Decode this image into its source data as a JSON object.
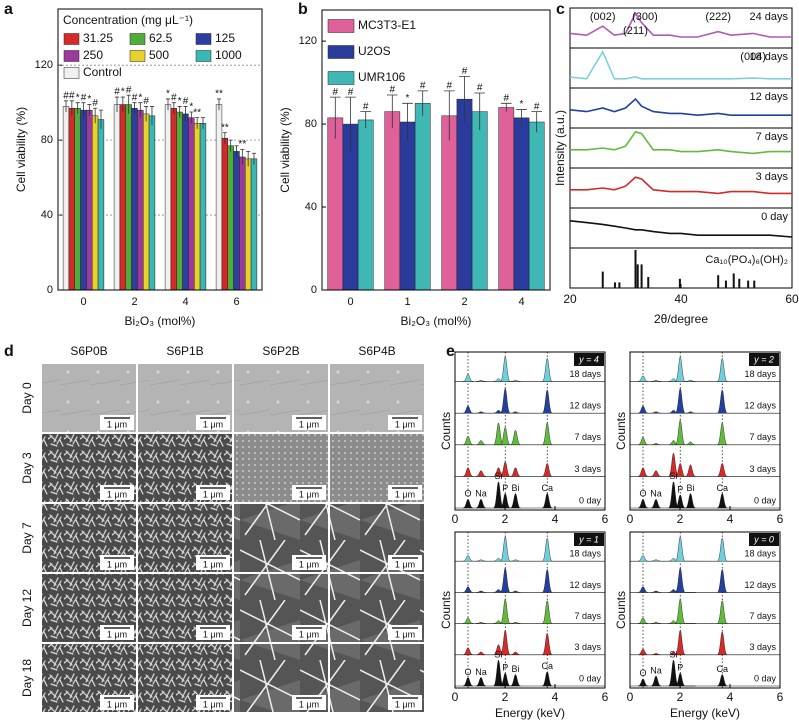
{
  "chart_data": [
    {
      "type": "bar",
      "panel": "a",
      "ylabel": "Cell viability (%)",
      "xlabel": "Bi₂O₃ (mol%)",
      "legend_title": "Concentration (mg μL⁻¹)",
      "legend": "top-left",
      "grid": true,
      "categories": [
        "0",
        "2",
        "4",
        "6"
      ],
      "ylim": [
        0,
        150
      ],
      "yticks": [
        0,
        40,
        80,
        120
      ],
      "series": [
        {
          "name": "Control",
          "color": "#f0f0f0",
          "values": [
            98,
            99,
            99,
            99
          ],
          "errors": [
            3,
            4,
            3,
            3
          ],
          "annotations": [
            "#",
            "#",
            "*",
            "**"
          ]
        },
        {
          "name": "31.25",
          "color": "#d42a2a",
          "values": [
            97,
            99,
            97,
            81
          ],
          "errors": [
            4,
            4,
            3,
            3
          ],
          "annotations": [
            "#",
            "*",
            "#",
            "**"
          ]
        },
        {
          "name": "62.5",
          "color": "#4fae3a",
          "values": [
            97,
            99,
            95,
            77
          ],
          "errors": [
            3,
            5,
            3,
            3
          ],
          "annotations": [
            "*",
            "#",
            "*",
            null
          ]
        },
        {
          "name": "125",
          "color": "#2b3f9e",
          "values": [
            96,
            97,
            94,
            74
          ],
          "errors": [
            4,
            3,
            4,
            3
          ],
          "annotations": [
            "#",
            "#",
            "#",
            null
          ]
        },
        {
          "name": "250",
          "color": "#9a3a9e",
          "values": [
            96,
            96,
            92,
            71
          ],
          "errors": [
            3,
            4,
            3,
            4
          ],
          "annotations": [
            "*",
            "*",
            "*",
            "**"
          ]
        },
        {
          "name": "500",
          "color": "#e8d22a",
          "values": [
            93,
            94,
            89,
            70
          ],
          "errors": [
            4,
            4,
            3,
            4
          ],
          "annotations": [
            "#",
            "#",
            "**",
            null
          ]
        },
        {
          "name": "1000",
          "color": "#3ab8b4",
          "values": [
            91,
            93,
            89,
            70
          ],
          "errors": [
            5,
            5,
            3,
            3
          ],
          "annotations": [
            null,
            null,
            null,
            null
          ]
        }
      ]
    },
    {
      "type": "bar",
      "panel": "b",
      "ylabel": "Cell viability (%)",
      "xlabel": "Bi₂O₃ (mol%)",
      "legend": "top-left",
      "grid": false,
      "categories": [
        "0",
        "1",
        "2",
        "4"
      ],
      "ylim": [
        0,
        135
      ],
      "yticks": [
        0,
        40,
        80,
        120
      ],
      "series": [
        {
          "name": "MC3T3-E1",
          "color": "#e0609a",
          "values": [
            83,
            86,
            84,
            88
          ],
          "errors": [
            10,
            8,
            12,
            2
          ],
          "annotations": [
            "#",
            "#",
            "#",
            "#"
          ]
        },
        {
          "name": "U2OS",
          "color": "#2a3b9c",
          "values": [
            80,
            81,
            92,
            83
          ],
          "errors": [
            13,
            9,
            11,
            4
          ],
          "annotations": [
            "#",
            "*",
            "#",
            "*"
          ]
        },
        {
          "name": "UMR106",
          "color": "#3fb7b5",
          "values": [
            82,
            90,
            86,
            81
          ],
          "errors": [
            4,
            6,
            9,
            5
          ],
          "annotations": [
            "#",
            "#",
            "#",
            "#"
          ]
        }
      ]
    },
    {
      "type": "line",
      "panel": "c",
      "ylabel": "Intensity (a.u.)",
      "xlabel": "2θ/degree",
      "xlim": [
        20,
        60
      ],
      "xticks": [
        20,
        40,
        60
      ],
      "ylim": [
        0,
        1
      ],
      "x": [
        20,
        23,
        25.9,
        28,
        30,
        31.8,
        32.9,
        35,
        38,
        40,
        43,
        46.7,
        49,
        53,
        56,
        60
      ],
      "series": [
        {
          "name": "24 days",
          "color": "#b05ab8",
          "values": [
            0.35,
            0.3,
            0.55,
            0.3,
            0.35,
            0.9,
            0.65,
            0.3,
            0.3,
            0.25,
            0.25,
            0.4,
            0.3,
            0.35,
            0.25,
            0.25
          ],
          "peaks": [
            {
              "label": "(002)",
              "x": 25.9
            },
            {
              "label": "(211)",
              "x": 31.8
            },
            {
              "label": "(300)",
              "x": 33.5
            },
            {
              "label": "(222)",
              "x": 46.7
            }
          ]
        },
        {
          "name": "18 days",
          "color": "#7fd0dc",
          "values": [
            0.25,
            0.2,
            0.95,
            0.2,
            0.2,
            0.25,
            0.2,
            0.2,
            0.2,
            0.2,
            0.2,
            0.2,
            0.2,
            0.22,
            0.2,
            0.2
          ],
          "peaks": [
            {
              "label": "(004)",
              "x": 53
            }
          ]
        },
        {
          "name": "12 days",
          "color": "#23409e",
          "values": [
            0.45,
            0.4,
            0.5,
            0.4,
            0.5,
            0.75,
            0.55,
            0.4,
            0.35,
            0.35,
            0.3,
            0.35,
            0.3,
            0.3,
            0.3,
            0.3
          ],
          "peaks": []
        },
        {
          "name": "7 days",
          "color": "#62bb3c",
          "values": [
            0.45,
            0.45,
            0.5,
            0.45,
            0.55,
            0.95,
            0.9,
            0.45,
            0.45,
            0.4,
            0.4,
            0.45,
            0.4,
            0.35,
            0.4,
            0.4
          ],
          "peaks": []
        },
        {
          "name": "3 days",
          "color": "#d42a2a",
          "values": [
            0.45,
            0.45,
            0.5,
            0.45,
            0.55,
            0.8,
            0.75,
            0.45,
            0.4,
            0.4,
            0.4,
            0.35,
            0.4,
            0.4,
            0.35,
            0.35
          ],
          "peaks": []
        },
        {
          "name": "0 day",
          "color": "#111111",
          "values": [
            0.7,
            0.65,
            0.6,
            0.55,
            0.5,
            0.45,
            0.45,
            0.4,
            0.35,
            0.35,
            0.3,
            0.3,
            0.3,
            0.3,
            0.3,
            0.25
          ],
          "peaks": []
        }
      ],
      "reference": {
        "name": "Ca₁₀(PO₄)₆(OH)₂",
        "color": "#111111",
        "x": [
          25.9,
          28.1,
          28.9,
          31.8,
          32.2,
          32.9,
          34.1,
          39.8,
          46.7,
          48.1,
          49.5,
          50.5,
          52.1,
          53.2
        ],
        "values": [
          0.4,
          0.1,
          0.1,
          1,
          0.6,
          0.6,
          0.25,
          0.2,
          0.3,
          0.15,
          0.35,
          0.2,
          0.15,
          0.15
        ]
      }
    },
    {
      "type": "image-grid",
      "panel": "d",
      "columns": [
        "S6P0B",
        "S6P1B",
        "S6P2B",
        "S6P4B"
      ],
      "rows": [
        "Day 0",
        "Day 3",
        "Day 7",
        "Day 12",
        "Day 18"
      ],
      "scale_bar": "1 μm"
    },
    {
      "type": "spectrum",
      "panel": "e",
      "ylabel": "Counts",
      "xlabel": "Energy (keV)",
      "xlim": [
        0,
        6
      ],
      "xticks": [
        0,
        2,
        4,
        6
      ],
      "ylim": [
        0,
        1
      ],
      "x": [
        0.52,
        1.04,
        1.74,
        2.01,
        2.42,
        3.69
      ],
      "guides": [
        0.52,
        2.01,
        3.69
      ],
      "series": [
        {
          "name": "18 days",
          "color": "#6fd0dc"
        },
        {
          "name": "12 days",
          "color": "#23409e"
        },
        {
          "name": "7 days",
          "color": "#62bb3c"
        },
        {
          "name": "3 days",
          "color": "#d42a2a"
        },
        {
          "name": "0 day",
          "color": "#111111"
        }
      ],
      "subplots": [
        {
          "tag": "y = 4",
          "labels": [
            "O",
            "Na",
            "Si",
            "P",
            "Bi",
            "Ca"
          ],
          "values": [
            [
              0.25,
              0.05,
              0.1,
              0.85,
              0.05,
              0.8
            ],
            [
              0.25,
              0.05,
              0.1,
              0.85,
              0.05,
              0.8
            ],
            [
              0.3,
              0.15,
              0.75,
              0.6,
              0.5,
              0.75
            ],
            [
              0.3,
              0.2,
              0.3,
              0.5,
              0.3,
              0.45
            ],
            [
              0.3,
              0.3,
              0.9,
              0.5,
              0.5,
              0.5
            ]
          ]
        },
        {
          "tag": "y = 2",
          "labels": [
            "O",
            "Na",
            "Si",
            "P",
            "Bi",
            "Ca"
          ],
          "values": [
            [
              0.2,
              0.05,
              0.1,
              0.85,
              0.05,
              0.8
            ],
            [
              0.25,
              0.05,
              0.1,
              0.85,
              0.05,
              0.8
            ],
            [
              0.25,
              0.05,
              0.15,
              0.85,
              0.1,
              0.75
            ],
            [
              0.3,
              0.2,
              0.8,
              0.45,
              0.4,
              0.45
            ],
            [
              0.3,
              0.3,
              0.9,
              0.45,
              0.5,
              0.5
            ]
          ]
        },
        {
          "tag": "y = 1",
          "labels": [
            "O",
            "Na",
            "Si",
            "P",
            "Bi",
            "Ca"
          ],
          "values": [
            [
              0.2,
              0.05,
              0.1,
              0.85,
              0.05,
              0.8
            ],
            [
              0.2,
              0.05,
              0.1,
              0.85,
              0.05,
              0.8
            ],
            [
              0.2,
              0.05,
              0.1,
              0.85,
              0.05,
              0.8
            ],
            [
              0.25,
              0.1,
              0.35,
              0.85,
              0.1,
              0.75
            ],
            [
              0.3,
              0.3,
              0.9,
              0.45,
              0.4,
              0.5
            ]
          ]
        },
        {
          "tag": "y = 0",
          "labels": [
            "O",
            "Na",
            "Si",
            "P",
            null,
            "Ca"
          ],
          "values": [
            [
              0.2,
              0.05,
              0.1,
              0.85,
              0,
              0.8
            ],
            [
              0.2,
              0.05,
              0.1,
              0.85,
              0,
              0.8
            ],
            [
              0.2,
              0.05,
              0.1,
              0.85,
              0,
              0.8
            ],
            [
              0.2,
              0.05,
              0.1,
              0.85,
              0,
              0.8
            ],
            [
              0.25,
              0.35,
              0.9,
              0.45,
              0,
              0.4
            ]
          ]
        }
      ]
    }
  ]
}
